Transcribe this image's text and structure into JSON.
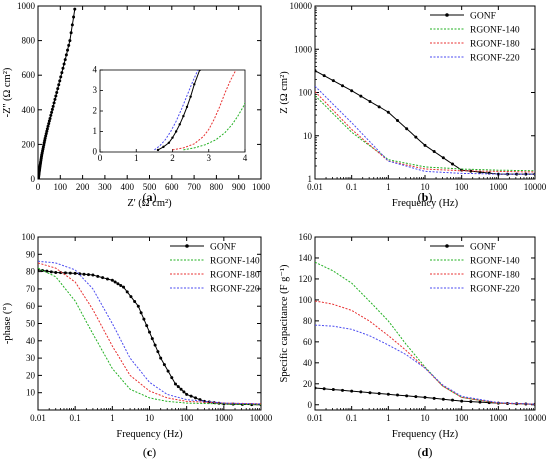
{
  "colors": {
    "GONF": "#000000",
    "RGONF-140": "#22b022",
    "RGONF-180": "#e83030",
    "RGONF-220": "#4b4bf0"
  },
  "chart_data": [
    {
      "panel": "a",
      "type": "scatter",
      "tag": {
        "open": "(",
        "letter": "a",
        "close": ")"
      },
      "xlabel": "Z' (Ω cm²)",
      "ylabel": "-Z'' (Ω cm²)",
      "xlim": [
        0,
        1000
      ],
      "ylim": [
        0,
        1000
      ],
      "xticks": [
        "0",
        "100",
        "200",
        "300",
        "400",
        "500",
        "600",
        "700",
        "800",
        "900",
        "1000"
      ],
      "yticks": [
        "0",
        "200",
        "400",
        "600",
        "800",
        "1000"
      ],
      "grid": false,
      "series": [
        {
          "name": "GONF",
          "marker": "dot",
          "x": [
            1.5,
            2,
            3,
            5,
            8,
            12,
            17,
            24,
            32,
            42,
            54,
            68,
            84,
            102,
            122,
            143,
            165
          ],
          "y": [
            1,
            6,
            18,
            38,
            65,
            100,
            140,
            185,
            235,
            290,
            350,
            420,
            500,
            590,
            690,
            800,
            982
          ]
        }
      ],
      "inset": {
        "xlim": [
          0,
          4
        ],
        "ylim": [
          0,
          4
        ],
        "xticks": [
          "0",
          "1",
          "2",
          "3",
          "4"
        ],
        "yticks": [
          "0",
          "1",
          "2",
          "3",
          "4"
        ],
        "series": [
          {
            "name": "GONF",
            "x": [
              1.6,
              1.75,
              1.9,
              2.0,
              2.1,
              2.2,
              2.3,
              2.4,
              2.5,
              2.6,
              2.75
            ],
            "y": [
              0.1,
              0.25,
              0.45,
              0.7,
              1.0,
              1.35,
              1.75,
              2.2,
              2.7,
              3.3,
              4.0
            ]
          },
          {
            "name": "RGONF-140",
            "x": [
              2.3,
              2.6,
              2.9,
              3.2,
              3.45,
              3.65,
              3.8,
              3.95,
              4.0
            ],
            "y": [
              0.1,
              0.2,
              0.35,
              0.6,
              0.95,
              1.35,
              1.75,
              2.2,
              2.4
            ]
          },
          {
            "name": "RGONF-180",
            "x": [
              2.0,
              2.3,
              2.6,
              2.85,
              3.0,
              3.15,
              3.3,
              3.45,
              3.6,
              3.75
            ],
            "y": [
              0.1,
              0.2,
              0.4,
              0.75,
              1.1,
              1.6,
              2.2,
              2.9,
              3.5,
              4.0
            ]
          },
          {
            "name": "RGONF-220",
            "x": [
              1.5,
              1.65,
              1.8,
              1.95,
              2.1,
              2.25,
              2.4,
              2.55,
              2.7
            ],
            "y": [
              0.1,
              0.3,
              0.6,
              1.0,
              1.5,
              2.1,
              2.75,
              3.4,
              4.0
            ]
          }
        ]
      }
    },
    {
      "panel": "b",
      "type": "line",
      "tag": {
        "open": "(",
        "letter": "b",
        "close": ")"
      },
      "xlabel": "Frequency (Hz)",
      "ylabel": "Z (Ω cm²)",
      "xscale": "log",
      "yscale": "log",
      "xlim": [
        0.01,
        10000
      ],
      "ylim": [
        1,
        10000
      ],
      "xticks": [
        "0.01",
        "0.1",
        "1",
        "10",
        "100",
        "1000",
        "10000"
      ],
      "yticks": [
        "1",
        "10",
        "100",
        "1000",
        "10000"
      ],
      "legend": "top-right",
      "grid": false,
      "series": [
        {
          "name": "GONF",
          "marker": "dot",
          "x": [
            0.01,
            0.1,
            1,
            10,
            100,
            1000,
            10000
          ],
          "y": [
            320,
            110,
            35,
            6,
            1.6,
            1.3,
            1.3
          ]
        },
        {
          "name": "RGONF-140",
          "marker": "none",
          "x": [
            0.01,
            0.1,
            1,
            10,
            100,
            1000,
            10000
          ],
          "y": [
            85,
            12,
            2.8,
            1.9,
            1.7,
            1.6,
            1.55
          ]
        },
        {
          "name": "RGONF-180",
          "marker": "none",
          "x": [
            0.01,
            0.1,
            1,
            10,
            100,
            1000,
            10000
          ],
          "y": [
            105,
            14,
            2.6,
            1.7,
            1.55,
            1.5,
            1.45
          ]
        },
        {
          "name": "RGONF-220",
          "marker": "none",
          "x": [
            0.01,
            0.1,
            1,
            10,
            100,
            1000,
            10000
          ],
          "y": [
            140,
            20,
            2.6,
            1.5,
            1.35,
            1.3,
            1.3
          ]
        }
      ]
    },
    {
      "panel": "c",
      "type": "line",
      "tag": {
        "open": "(",
        "letter": "c",
        "close": ")"
      },
      "xlabel": "Frequency (Hz)",
      "ylabel": "-phase (°)",
      "xscale": "log",
      "xlim": [
        0.01,
        10000
      ],
      "ylim": [
        0,
        100
      ],
      "xticks": [
        "0.01",
        "0.1",
        "1",
        "10",
        "100",
        "1000",
        "10000"
      ],
      "yticks": [
        "10",
        "20",
        "30",
        "40",
        "50",
        "60",
        "70",
        "80",
        "90",
        "100"
      ],
      "legend": "top-right",
      "grid": false,
      "series": [
        {
          "name": "GONF",
          "marker": "dot",
          "x": [
            0.01,
            0.03,
            0.1,
            0.3,
            1,
            2,
            5,
            10,
            20,
            50,
            100,
            300,
            1000,
            10000
          ],
          "y": [
            81,
            79.5,
            79,
            78,
            75,
            71,
            60,
            45,
            30,
            15,
            9,
            5,
            3.5,
            3
          ]
        },
        {
          "name": "RGONF-140",
          "marker": "none",
          "x": [
            0.01,
            0.03,
            0.1,
            0.3,
            1,
            3,
            10,
            30,
            100,
            1000,
            10000
          ],
          "y": [
            82,
            77,
            63,
            44,
            24,
            12,
            7,
            5,
            4,
            3.5,
            3
          ]
        },
        {
          "name": "RGONF-180",
          "marker": "none",
          "x": [
            0.01,
            0.03,
            0.1,
            0.3,
            1,
            3,
            10,
            30,
            100,
            1000,
            10000
          ],
          "y": [
            85,
            82,
            74,
            58,
            37,
            20,
            11,
            7,
            5,
            4,
            3.5
          ]
        },
        {
          "name": "RGONF-220",
          "marker": "none",
          "x": [
            0.01,
            0.03,
            0.1,
            0.3,
            1,
            3,
            10,
            30,
            100,
            1000,
            10000
          ],
          "y": [
            86,
            85,
            81,
            70,
            50,
            30,
            16,
            9,
            6,
            4,
            3.5
          ]
        }
      ]
    },
    {
      "panel": "d",
      "type": "line",
      "tag": {
        "open": "(",
        "letter": "d",
        "close": ")"
      },
      "xlabel": "Frequency (Hz)",
      "ylabel": "Specific capacitance (F g⁻¹)",
      "xscale": "log",
      "xlim": [
        0.01,
        10000
      ],
      "ylim": [
        -5,
        160
      ],
      "xticks": [
        "0.01",
        "0.1",
        "1",
        "10",
        "100",
        "1000",
        "10000"
      ],
      "yticks": [
        "0",
        "20",
        "40",
        "60",
        "80",
        "100",
        "120",
        "140",
        "160"
      ],
      "legend": "top-right",
      "grid": false,
      "series": [
        {
          "name": "GONF",
          "marker": "dot",
          "x": [
            0.01,
            0.1,
            1,
            10,
            100,
            1000,
            10000
          ],
          "y": [
            16,
            13,
            10,
            7,
            3.5,
            1.5,
            0.5
          ]
        },
        {
          "name": "RGONF-140",
          "marker": "none",
          "x": [
            0.01,
            0.03,
            0.1,
            0.3,
            1,
            3,
            10,
            30,
            100,
            1000,
            10000
          ],
          "y": [
            136,
            128,
            116,
            99,
            80,
            58,
            36,
            18,
            7,
            1.5,
            0.5
          ]
        },
        {
          "name": "RGONF-180",
          "marker": "none",
          "x": [
            0.01,
            0.03,
            0.1,
            0.3,
            1,
            3,
            10,
            30,
            100,
            1000,
            10000
          ],
          "y": [
            99,
            96,
            90,
            80,
            66,
            52,
            35,
            18,
            7,
            1.5,
            0.5
          ]
        },
        {
          "name": "RGONF-220",
          "marker": "none",
          "x": [
            0.01,
            0.03,
            0.1,
            0.3,
            1,
            3,
            10,
            30,
            100,
            1000,
            10000
          ],
          "y": [
            76,
            75,
            72,
            66,
            57,
            48,
            35,
            19,
            8,
            2,
            0.5
          ]
        }
      ]
    }
  ]
}
